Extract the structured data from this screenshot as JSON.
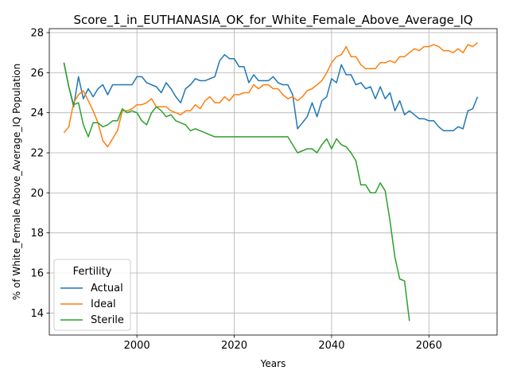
{
  "chart_data": {
    "type": "line",
    "title": "Score_1_in_EUTHANASIA_OK_for_White_Female_Above_Average_IQ",
    "xlabel": "Years",
    "ylabel": "% of White_Female Above_Average_IQ Population",
    "xlim": [
      1982,
      2074
    ],
    "ylim": [
      12.9,
      28.2
    ],
    "xticks": [
      2000,
      2020,
      2040,
      2060
    ],
    "yticks": [
      14,
      16,
      18,
      20,
      22,
      24,
      26,
      28
    ],
    "grid": true,
    "legend": {
      "title": "Fertility",
      "placement": "lower-left"
    },
    "series": [
      {
        "name": "Actual",
        "color": "#1f77b4",
        "x": [
          1985,
          1986,
          1987,
          1988,
          1989,
          1990,
          1991,
          1992,
          1993,
          1994,
          1995,
          1996,
          1997,
          1998,
          1999,
          2000,
          2001,
          2002,
          2003,
          2004,
          2005,
          2006,
          2007,
          2008,
          2009,
          2010,
          2011,
          2012,
          2013,
          2014,
          2015,
          2016,
          2017,
          2018,
          2019,
          2020,
          2021,
          2022,
          2023,
          2024,
          2025,
          2026,
          2027,
          2028,
          2029,
          2030,
          2031,
          2032,
          2033,
          2034,
          2035,
          2036,
          2037,
          2038,
          2039,
          2040,
          2041,
          2042,
          2043,
          2044,
          2045,
          2046,
          2047,
          2048,
          2049,
          2050,
          2051,
          2052,
          2053,
          2054,
          2055,
          2056,
          2057,
          2058,
          2059,
          2060,
          2061,
          2062,
          2063,
          2064,
          2065,
          2066,
          2067,
          2068,
          2069,
          2070
        ],
        "y": [
          26.5,
          25.3,
          24.3,
          25.8,
          24.7,
          25.2,
          24.8,
          25.2,
          25.4,
          24.9,
          25.4,
          25.4,
          25.4,
          25.4,
          25.4,
          25.8,
          25.8,
          25.5,
          25.4,
          25.3,
          25.0,
          25.5,
          25.2,
          24.8,
          24.5,
          25.2,
          25.4,
          25.7,
          25.6,
          25.6,
          25.7,
          25.8,
          26.6,
          26.9,
          26.7,
          26.7,
          26.3,
          26.3,
          25.5,
          25.9,
          25.6,
          25.6,
          25.6,
          25.8,
          25.5,
          25.4,
          25.4,
          24.9,
          23.2,
          23.5,
          23.8,
          24.5,
          23.8,
          24.6,
          24.8,
          25.7,
          25.5,
          26.4,
          25.9,
          25.9,
          25.4,
          25.5,
          25.2,
          25.3,
          24.7,
          25.3,
          24.7,
          25.0,
          24.1,
          24.6,
          23.9,
          24.1,
          23.9,
          23.7,
          23.7,
          23.6,
          23.6,
          23.3,
          23.1,
          23.1,
          23.1,
          23.3,
          23.2,
          24.1,
          24.2,
          24.8
        ]
      },
      {
        "name": "Ideal",
        "color": "#ff7f0e",
        "x": [
          1985,
          1986,
          1987,
          1988,
          1989,
          1990,
          1991,
          1992,
          1993,
          1994,
          1995,
          1996,
          1997,
          1998,
          1999,
          2000,
          2001,
          2002,
          2003,
          2004,
          2005,
          2006,
          2007,
          2008,
          2009,
          2010,
          2011,
          2012,
          2013,
          2014,
          2015,
          2016,
          2017,
          2018,
          2019,
          2020,
          2021,
          2022,
          2023,
          2024,
          2025,
          2026,
          2027,
          2028,
          2029,
          2030,
          2031,
          2032,
          2033,
          2034,
          2035,
          2036,
          2037,
          2038,
          2039,
          2040,
          2041,
          2042,
          2043,
          2044,
          2045,
          2046,
          2047,
          2048,
          2049,
          2050,
          2051,
          2052,
          2053,
          2054,
          2055,
          2056,
          2057,
          2058,
          2059,
          2060,
          2061,
          2062,
          2063,
          2064,
          2065,
          2066,
          2067,
          2068,
          2069,
          2070
        ],
        "y": [
          23.0,
          23.3,
          24.5,
          24.9,
          25.1,
          24.6,
          24.1,
          23.5,
          22.6,
          22.3,
          22.7,
          23.1,
          24.1,
          24.1,
          24.2,
          24.4,
          24.4,
          24.5,
          24.7,
          24.3,
          24.3,
          24.3,
          24.1,
          24.0,
          23.9,
          24.1,
          24.1,
          24.4,
          24.2,
          24.6,
          24.8,
          24.5,
          24.5,
          24.8,
          24.6,
          24.9,
          24.9,
          25.0,
          25.0,
          25.4,
          25.2,
          25.4,
          25.4,
          25.2,
          25.2,
          24.9,
          24.7,
          24.8,
          24.6,
          24.8,
          25.1,
          25.2,
          25.4,
          25.6,
          26.0,
          26.5,
          26.8,
          26.9,
          27.3,
          26.8,
          26.8,
          26.4,
          26.2,
          26.2,
          26.2,
          26.5,
          26.5,
          26.6,
          26.5,
          26.8,
          26.8,
          27.0,
          27.2,
          27.1,
          27.3,
          27.3,
          27.4,
          27.3,
          27.1,
          27.1,
          27.0,
          27.2,
          27.0,
          27.4,
          27.3,
          27.5
        ]
      },
      {
        "name": "Sterile",
        "color": "#2ca02c",
        "x": [
          1985,
          1986,
          1987,
          1988,
          1989,
          1990,
          1991,
          1992,
          1993,
          1994,
          1995,
          1996,
          1997,
          1998,
          1999,
          2000,
          2001,
          2002,
          2003,
          2004,
          2005,
          2006,
          2007,
          2008,
          2009,
          2010,
          2011,
          2012,
          2013,
          2014,
          2015,
          2016,
          2017,
          2018,
          2019,
          2020,
          2021,
          2022,
          2023,
          2024,
          2025,
          2026,
          2027,
          2028,
          2029,
          2030,
          2031,
          2032,
          2033,
          2034,
          2035,
          2036,
          2037,
          2038,
          2039,
          2040,
          2041,
          2042,
          2043,
          2044,
          2045,
          2046,
          2047,
          2048,
          2049,
          2050,
          2051,
          2052,
          2053,
          2054,
          2055,
          2056
        ],
        "y": [
          26.5,
          25.3,
          24.4,
          24.5,
          23.4,
          22.8,
          23.5,
          23.5,
          23.3,
          23.4,
          23.6,
          23.6,
          24.2,
          24.0,
          24.1,
          24.0,
          23.6,
          23.4,
          24.0,
          24.3,
          24.1,
          23.8,
          23.9,
          23.6,
          23.5,
          23.4,
          23.1,
          23.2,
          23.1,
          23.0,
          22.9,
          22.8,
          22.8,
          22.8,
          22.8,
          22.8,
          22.8,
          22.8,
          22.8,
          22.8,
          22.8,
          22.8,
          22.8,
          22.8,
          22.8,
          22.8,
          22.8,
          22.4,
          22.0,
          22.1,
          22.2,
          22.2,
          22.0,
          22.4,
          22.7,
          22.2,
          22.7,
          22.4,
          22.3,
          22.0,
          21.6,
          20.4,
          20.4,
          20.0,
          20.0,
          20.5,
          20.1,
          18.6,
          16.8,
          15.7,
          15.6,
          13.6
        ]
      }
    ]
  }
}
